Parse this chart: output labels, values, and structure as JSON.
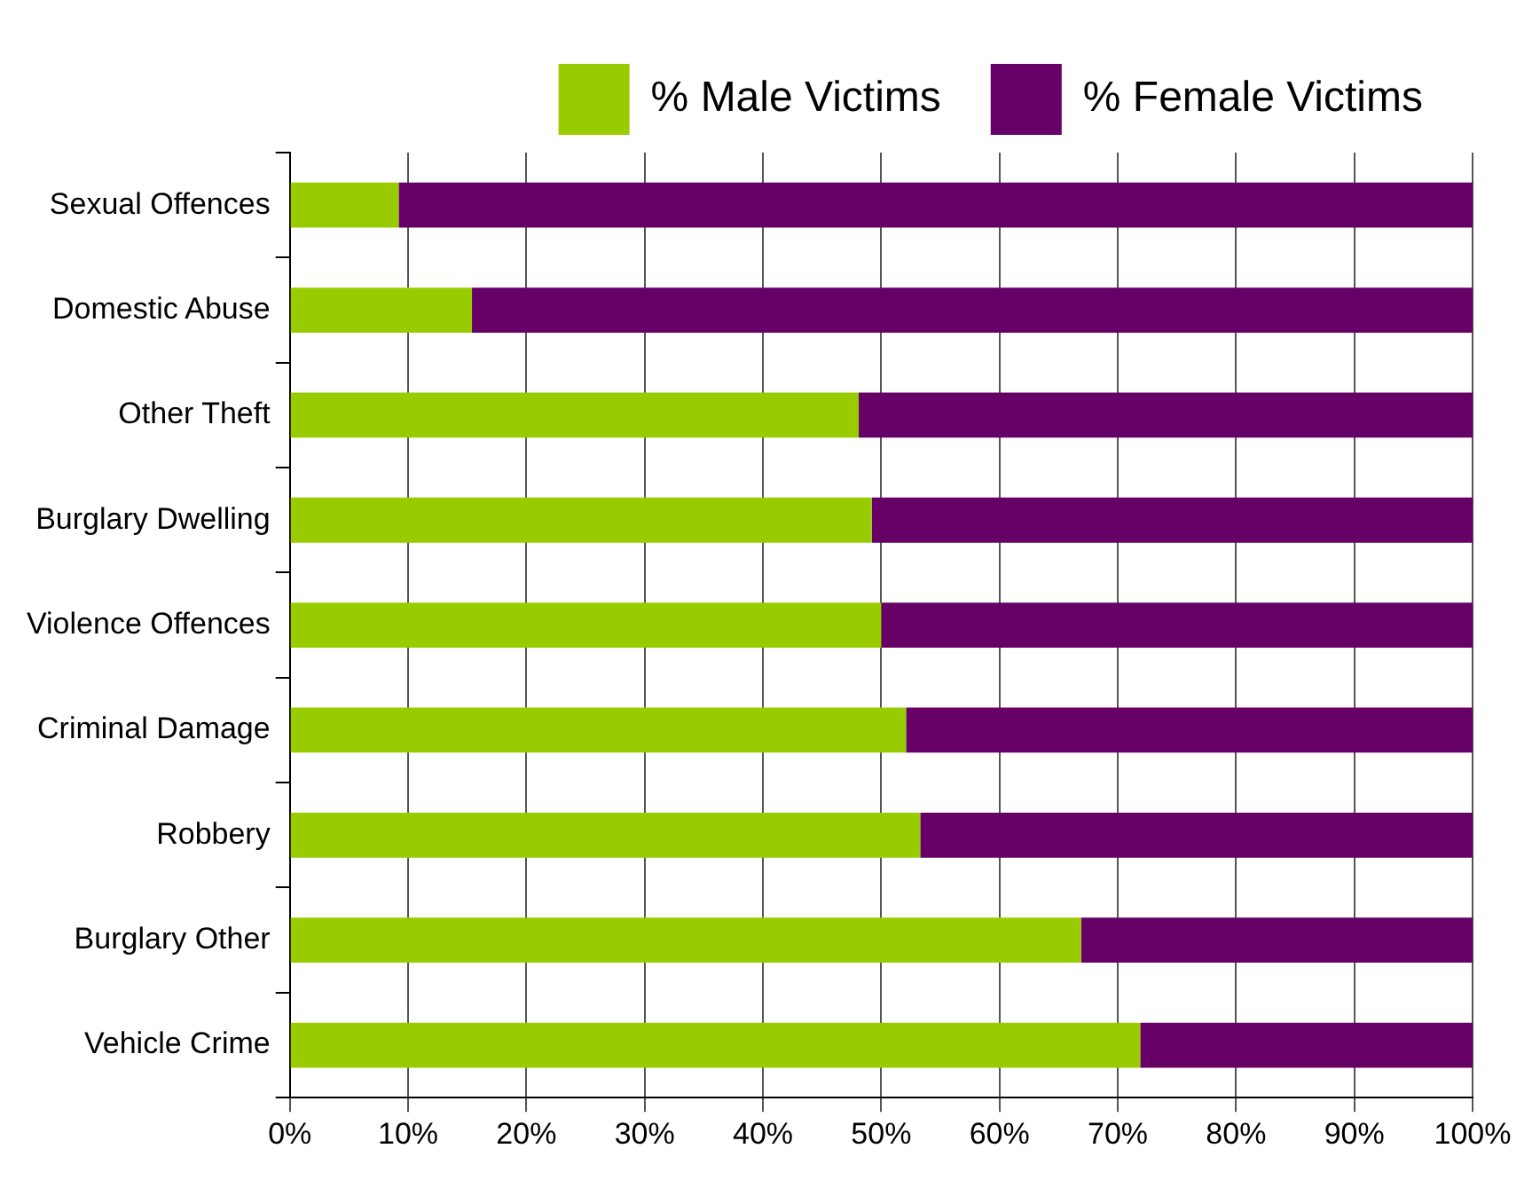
{
  "chart_data": {
    "type": "bar",
    "orientation": "horizontal",
    "stacked": true,
    "categories": [
      "Sexual Offences",
      "Domestic Abuse",
      "Other Theft",
      "Burglary Dwelling",
      "Violence Offences",
      "Criminal Damage",
      "Robbery",
      "Burglary Other",
      "Vehicle Crime"
    ],
    "series": [
      {
        "name": "% Male Victims",
        "color": "#99cc00",
        "values": [
          9.2,
          15.4,
          48.1,
          49.2,
          50,
          52.1,
          53.3,
          66.9,
          71.9
        ]
      },
      {
        "name": "% Female Victims",
        "color": "#660066",
        "values": [
          90.8,
          84.6,
          51.9,
          50.8,
          50,
          47.9,
          46.7,
          33.1,
          28.1
        ]
      }
    ],
    "xlim": [
      0,
      100
    ],
    "xticks": [
      {
        "value": 0,
        "label": "0%"
      },
      {
        "value": 10,
        "label": "10%"
      },
      {
        "value": 20,
        "label": "20%"
      },
      {
        "value": 30,
        "label": "30%"
      },
      {
        "value": 40,
        "label": "40%"
      },
      {
        "value": 50,
        "label": "50%"
      },
      {
        "value": 60,
        "label": "60%"
      },
      {
        "value": 70,
        "label": "70%"
      },
      {
        "value": 80,
        "label": "80%"
      },
      {
        "value": 90,
        "label": "90%"
      },
      {
        "value": 100,
        "label": "100%"
      }
    ],
    "grid": "x",
    "legend": "top right"
  }
}
